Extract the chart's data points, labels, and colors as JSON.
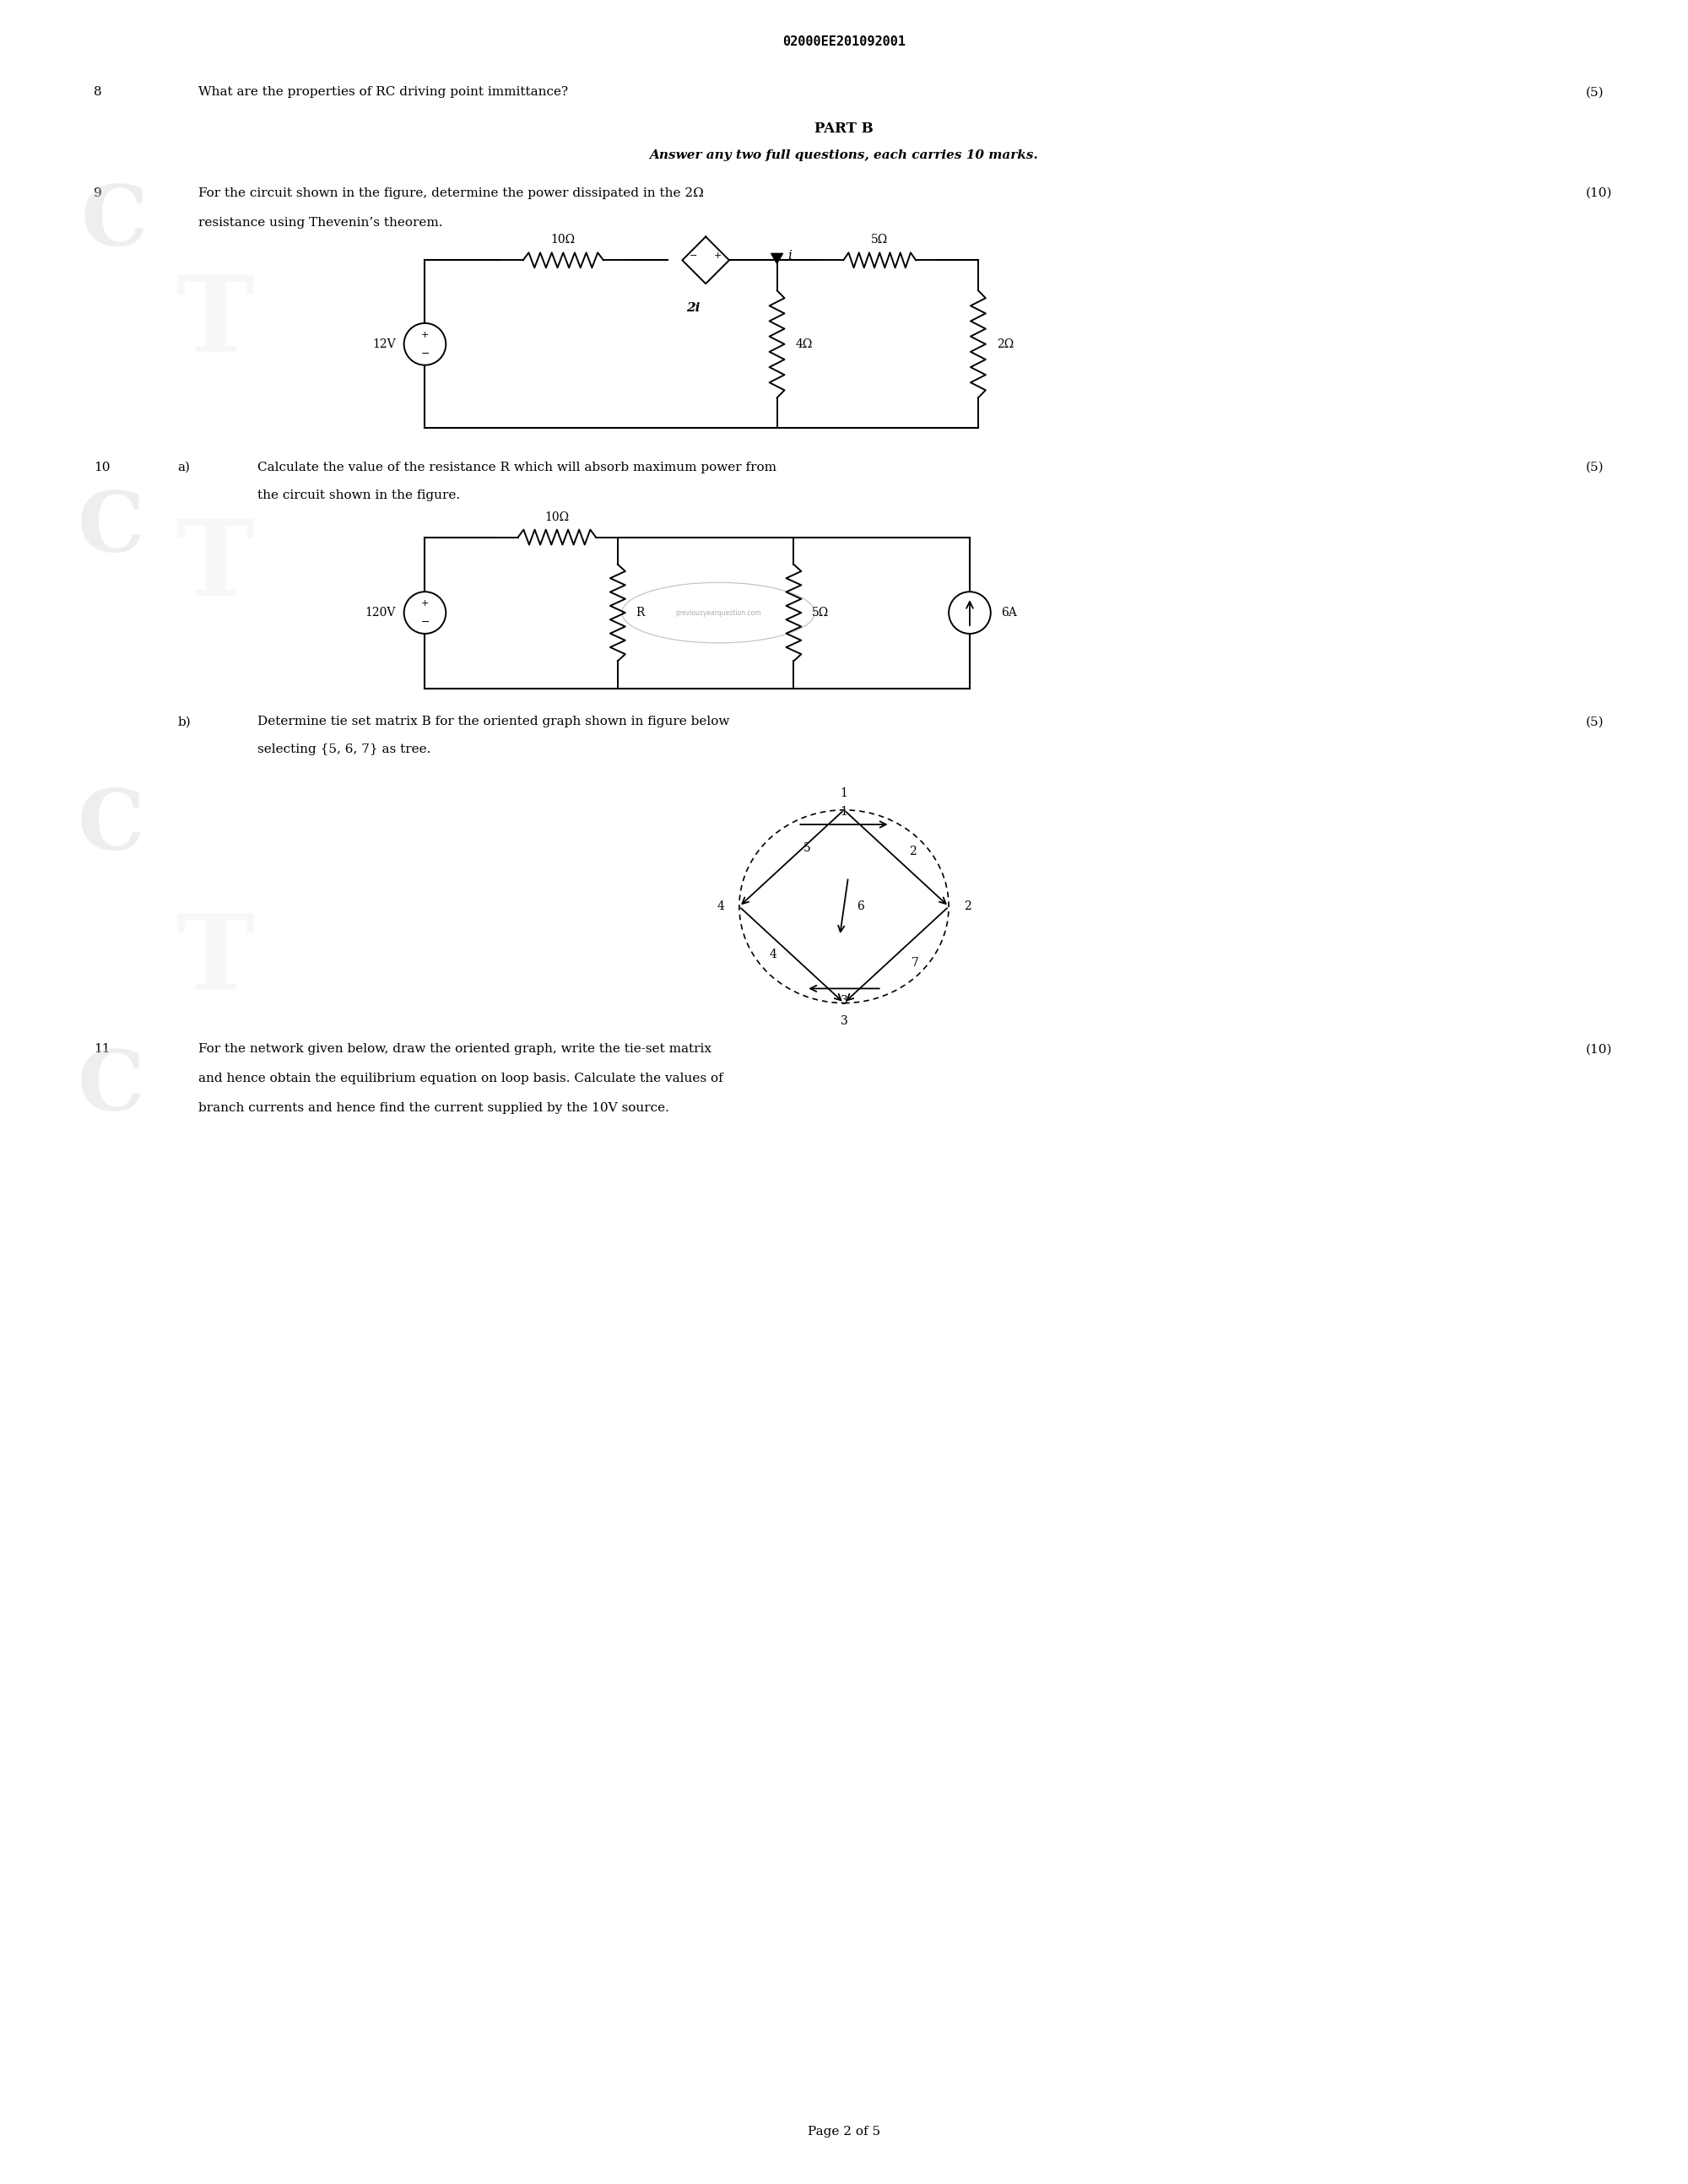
{
  "page_width": 20.0,
  "page_height": 25.88,
  "bg_color": "#ffffff",
  "header_text": "02000EE201092001",
  "q8_num": "8",
  "q8_text": "What are the properties of RC driving point immittance?",
  "q8_marks": "(5)",
  "partb_title": "PART B",
  "partb_sub": "Answer any two full questions, each carries 10 marks.",
  "q9_num": "9",
  "q9_text": "For the circuit shown in the figure, determine the power dissipated in the 2Ω",
  "q9_marks": "(10)",
  "q9_text2": "resistance using Thevenin’s theorem.",
  "q10a_num": "10",
  "q10a_sub": "a)",
  "q10a_text": "Calculate the value of the resistance R which will absorb maximum power from",
  "q10a_marks": "(5)",
  "q10a_text2": "the circuit shown in the figure.",
  "q10b_label": "b)",
  "q10b_text": "Determine tie set matrix B for the oriented graph shown in figure below",
  "q10b_marks": "(5)",
  "q10b_text2": "selecting {5, 6, 7} as tree.",
  "q11_num": "11",
  "q11_text": "For the network given below, draw the oriented graph, write the tie-set matrix",
  "q11_marks": "(10)",
  "q11_text2": "and hence obtain the equilibrium equation on loop basis. Calculate the values of",
  "q11_text3": "branch currents and hence find the current supplied by the 10V source.",
  "page_label": "Page 2 of 5"
}
